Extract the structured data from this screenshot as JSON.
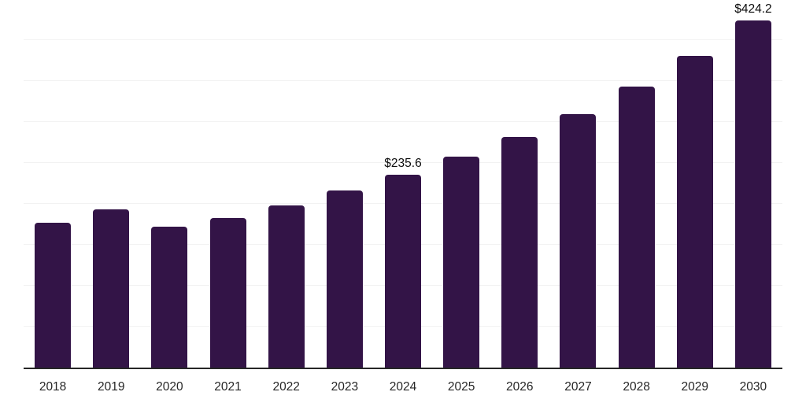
{
  "chart_data": {
    "type": "bar",
    "categories": [
      "2018",
      "2019",
      "2020",
      "2021",
      "2022",
      "2023",
      "2024",
      "2025",
      "2026",
      "2027",
      "2028",
      "2029",
      "2030"
    ],
    "values": [
      177,
      193,
      172,
      183,
      198,
      216,
      235.6,
      258,
      282,
      310,
      343,
      381,
      424.2
    ],
    "data_labels": {
      "2024": "$235.6",
      "2030": "$424.2"
    },
    "title": "",
    "xlabel": "",
    "ylabel": "",
    "ylim": [
      0,
      450
    ],
    "gridline_interval": 50,
    "grid": true,
    "legend_position": "none",
    "y_axis_ticks_visible": false,
    "colors": {
      "bar": "#331447",
      "axis": "#262626",
      "grid": "#f2f2f2",
      "data_label": "#0d0d0d",
      "tick_label": "#262626",
      "background": "#ffffff"
    }
  }
}
